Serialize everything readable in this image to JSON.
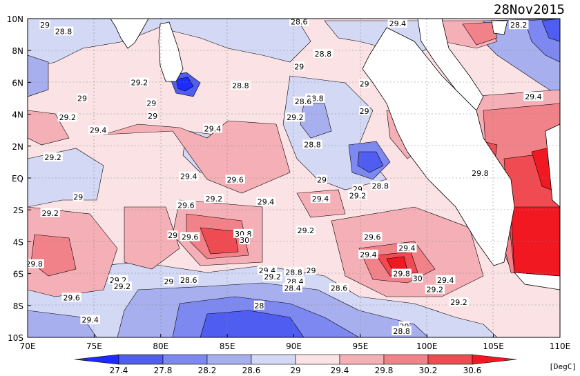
{
  "date_label": "28Nov2015",
  "units_label": "[DegC]",
  "colors": {
    "c_lt_27_4": "#1e2bff",
    "c_27_4_27_8": "#4f5df0",
    "c_27_8_28_2": "#7d88f0",
    "c_28_2_28_6": "#a7afee",
    "c_28_6_29": "#d3d8f5",
    "c_29_29_4": "#fbe2e5",
    "c_29_4_29_8": "#f5afb6",
    "c_29_8_30_2": "#f28289",
    "c_30_2_30_6": "#f04b52",
    "c_gt_30_6": "#f21822",
    "land": "#ffffff"
  },
  "lat_labels": [
    "10N",
    "8N",
    "6N",
    "4N",
    "2N",
    "EQ",
    "2S",
    "4S",
    "6S",
    "8S",
    "10S"
  ],
  "lon_labels": [
    "70E",
    "75E",
    "80E",
    "85E",
    "90E",
    "95E",
    "100E",
    "105E",
    "110E"
  ],
  "colorbar": {
    "levels": [
      "27.4",
      "27.8",
      "28.2",
      "28.6",
      "29",
      "29.4",
      "29.8",
      "30.2",
      "30.6"
    ]
  },
  "contour_labels": [
    {
      "text": "29",
      "lon": 71.3,
      "lat": 9.6
    },
    {
      "text": "28.8",
      "lon": 72.7,
      "lat": 9.2
    },
    {
      "text": "28.6",
      "lon": 90.4,
      "lat": 9.8
    },
    {
      "text": "29.4",
      "lon": 97.8,
      "lat": 9.7
    },
    {
      "text": "28.2",
      "lon": 106.9,
      "lat": 9.6
    },
    {
      "text": "28.8",
      "lon": 92.2,
      "lat": 7.8
    },
    {
      "text": "29",
      "lon": 90.4,
      "lat": 7.0
    },
    {
      "text": "29.2",
      "lon": 78.4,
      "lat": 6.0
    },
    {
      "text": "28.8",
      "lon": 86.0,
      "lat": 5.8
    },
    {
      "text": "29",
      "lon": 95.3,
      "lat": 5.9
    },
    {
      "text": "28.8",
      "lon": 91.6,
      "lat": 5.0
    },
    {
      "text": "28.6",
      "lon": 90.7,
      "lat": 4.8
    },
    {
      "text": "29.4",
      "lon": 108.0,
      "lat": 5.1
    },
    {
      "text": "29",
      "lon": 74.1,
      "lat": 5.0
    },
    {
      "text": "29",
      "lon": 79.3,
      "lat": 4.7
    },
    {
      "text": "29",
      "lon": 95.3,
      "lat": 4.2
    },
    {
      "text": "29.2",
      "lon": 73.0,
      "lat": 3.8
    },
    {
      "text": "29",
      "lon": 79.4,
      "lat": 3.9
    },
    {
      "text": "29.2",
      "lon": 90.1,
      "lat": 3.8
    },
    {
      "text": "29.4",
      "lon": 75.3,
      "lat": 3.0
    },
    {
      "text": "29.4",
      "lon": 83.9,
      "lat": 3.1
    },
    {
      "text": "29.2",
      "lon": 71.9,
      "lat": 1.3
    },
    {
      "text": "28.8",
      "lon": 91.4,
      "lat": 2.1
    },
    {
      "text": "29.4",
      "lon": 82.1,
      "lat": 0.1
    },
    {
      "text": "29.6",
      "lon": 85.6,
      "lat": -0.1
    },
    {
      "text": "29",
      "lon": 92.1,
      "lat": -0.1
    },
    {
      "text": "29",
      "lon": 94.8,
      "lat": -0.7
    },
    {
      "text": "28.8",
      "lon": 96.5,
      "lat": -0.5
    },
    {
      "text": "29.8",
      "lon": 104.0,
      "lat": 0.3
    },
    {
      "text": "29",
      "lon": 73.8,
      "lat": -1.2
    },
    {
      "text": "29.2",
      "lon": 84.0,
      "lat": -1.3
    },
    {
      "text": "29.2",
      "lon": 94.8,
      "lat": -1.1
    },
    {
      "text": "29.6",
      "lon": 81.9,
      "lat": -1.7
    },
    {
      "text": "29.4",
      "lon": 87.9,
      "lat": -1.5
    },
    {
      "text": "29.4",
      "lon": 92.0,
      "lat": -1.3
    },
    {
      "text": "29.2",
      "lon": 71.7,
      "lat": -2.2
    },
    {
      "text": "29.2",
      "lon": 90.9,
      "lat": -3.3
    },
    {
      "text": "29",
      "lon": 80.9,
      "lat": -3.6
    },
    {
      "text": "29.6",
      "lon": 82.2,
      "lat": -3.7
    },
    {
      "text": "30.8",
      "lon": 86.2,
      "lat": -3.5
    },
    {
      "text": "30",
      "lon": 86.3,
      "lat": -3.9
    },
    {
      "text": "29.6",
      "lon": 95.9,
      "lat": -3.7
    },
    {
      "text": "29.8",
      "lon": 70.5,
      "lat": -5.4
    },
    {
      "text": "29.4",
      "lon": 98.5,
      "lat": -4.4
    },
    {
      "text": "29.4",
      "lon": 95.6,
      "lat": -4.8
    },
    {
      "text": "29.4",
      "lon": 88.0,
      "lat": -5.8
    },
    {
      "text": "29.2",
      "lon": 88.4,
      "lat": -6.2
    },
    {
      "text": "28.8",
      "lon": 90.0,
      "lat": -5.9
    },
    {
      "text": "29",
      "lon": 91.3,
      "lat": -5.8
    },
    {
      "text": "28.4",
      "lon": 90.1,
      "lat": -6.5
    },
    {
      "text": "29.8",
      "lon": 98.1,
      "lat": -6.0
    },
    {
      "text": "30",
      "lon": 99.3,
      "lat": -6.3
    },
    {
      "text": "29.4",
      "lon": 101.4,
      "lat": -6.4
    },
    {
      "text": "29.2",
      "lon": 76.8,
      "lat": -6.4
    },
    {
      "text": "29",
      "lon": 80.6,
      "lat": -6.5
    },
    {
      "text": "28.6",
      "lon": 82.1,
      "lat": -6.4
    },
    {
      "text": "29.2",
      "lon": 77.1,
      "lat": -6.8
    },
    {
      "text": "28.4",
      "lon": 89.9,
      "lat": -6.9
    },
    {
      "text": "28.6",
      "lon": 93.4,
      "lat": -6.9
    },
    {
      "text": "29.2",
      "lon": 100.6,
      "lat": -7.0
    },
    {
      "text": "29.6",
      "lon": 73.3,
      "lat": -7.5
    },
    {
      "text": "29.2",
      "lon": 102.4,
      "lat": -7.8
    },
    {
      "text": "28",
      "lon": 87.4,
      "lat": -8.0
    },
    {
      "text": "29.4",
      "lon": 74.7,
      "lat": -8.9
    },
    {
      "text": "29",
      "lon": 98.3,
      "lat": -9.3
    },
    {
      "text": "28.8",
      "lon": 98.1,
      "lat": -9.6
    }
  ]
}
